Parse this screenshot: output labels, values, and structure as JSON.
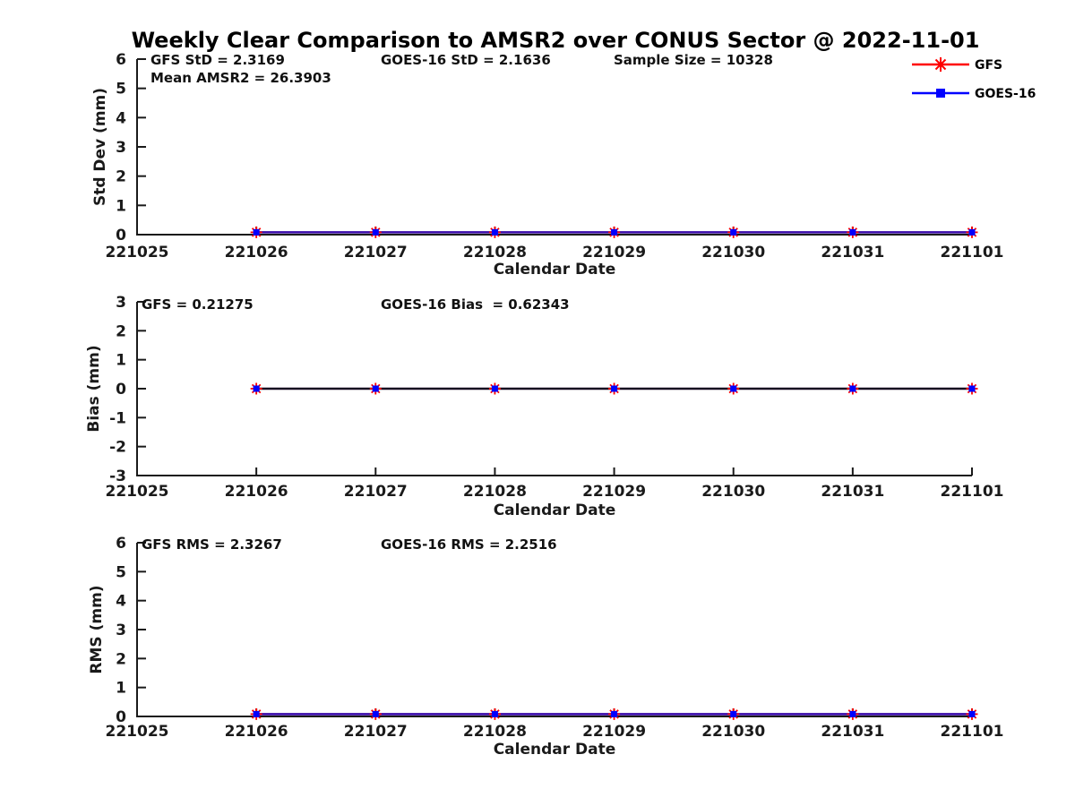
{
  "title": "Weekly Clear Comparison to AMSR2 over CONUS Sector @ 2022-11-01",
  "legend": {
    "items": [
      {
        "label": "GFS",
        "color": "#ff0000",
        "marker": "asterisk"
      },
      {
        "label": "GOES-16",
        "color": "#0000ff",
        "marker": "square"
      }
    ]
  },
  "colors": {
    "axis": "#1a1a1a",
    "gfs": "#ff0000",
    "goes16": "#0000ff",
    "blended_line_top_bottom": "#3808a8",
    "blended_line_middle": "#150520"
  },
  "chart_data": [
    {
      "type": "line",
      "ylabel": "Std Dev (mm)",
      "xlabel": "Calendar Date",
      "ylim": [
        0,
        6
      ],
      "yticks": [
        0,
        1,
        2,
        3,
        4,
        5,
        6
      ],
      "xticklabels": [
        "221025",
        "221026",
        "221027",
        "221028",
        "221029",
        "221030",
        "221031",
        "221101"
      ],
      "x": [
        "221026",
        "221027",
        "221028",
        "221029",
        "221030",
        "221031",
        "221101"
      ],
      "series": [
        {
          "name": "GFS",
          "color": "#ff0000",
          "marker": "asterisk",
          "values": [
            0.08,
            0.08,
            0.08,
            0.08,
            0.08,
            0.08,
            0.08
          ]
        },
        {
          "name": "GOES-16",
          "color": "#0000ff",
          "marker": "square",
          "values": [
            0.08,
            0.08,
            0.08,
            0.08,
            0.08,
            0.08,
            0.08
          ]
        }
      ],
      "line_blend_color": "#3808a8",
      "grid": false,
      "annotations": [
        {
          "text": "GFS StD = 2.3169"
        },
        {
          "text": "GOES-16 StD = 2.1636"
        },
        {
          "text": "Sample Size = 10328"
        },
        {
          "text": "Mean AMSR2 = 26.3903"
        }
      ]
    },
    {
      "type": "line",
      "ylabel": "Bias (mm)",
      "xlabel": "Calendar Date",
      "ylim": [
        -3,
        3
      ],
      "yticks": [
        3,
        2,
        1,
        0,
        -1,
        -2,
        -3
      ],
      "xticklabels": [
        "221025",
        "221026",
        "221027",
        "221028",
        "221029",
        "221030",
        "221031",
        "221101"
      ],
      "x": [
        "221026",
        "221027",
        "221028",
        "221029",
        "221030",
        "221031",
        "221101"
      ],
      "series": [
        {
          "name": "GFS",
          "color": "#ff0000",
          "marker": "asterisk",
          "values": [
            0,
            0,
            0,
            0,
            0,
            0,
            0
          ]
        },
        {
          "name": "GOES-16",
          "color": "#0000ff",
          "marker": "square",
          "values": [
            0,
            0,
            0,
            0,
            0,
            0,
            0
          ]
        }
      ],
      "line_blend_color": "#150520",
      "grid": false,
      "annotations": [
        {
          "text": "GFS = 0.21275"
        },
        {
          "text": "GOES-16 Bias  = 0.62343"
        }
      ]
    },
    {
      "type": "line",
      "ylabel": "RMS (mm)",
      "xlabel": "Calendar Date",
      "ylim": [
        0,
        6
      ],
      "yticks": [
        0,
        1,
        2,
        3,
        4,
        5,
        6
      ],
      "xticklabels": [
        "221025",
        "221026",
        "221027",
        "221028",
        "221029",
        "221030",
        "221031",
        "221101"
      ],
      "x": [
        "221026",
        "221027",
        "221028",
        "221029",
        "221030",
        "221031",
        "221101"
      ],
      "series": [
        {
          "name": "GFS",
          "color": "#ff0000",
          "marker": "asterisk",
          "values": [
            0.08,
            0.08,
            0.08,
            0.08,
            0.08,
            0.08,
            0.08
          ]
        },
        {
          "name": "GOES-16",
          "color": "#0000ff",
          "marker": "square",
          "values": [
            0.08,
            0.08,
            0.08,
            0.08,
            0.08,
            0.08,
            0.08
          ]
        }
      ],
      "line_blend_color": "#3808a8",
      "grid": false,
      "annotations": [
        {
          "text": "GFS RMS = 2.3267"
        },
        {
          "text": "GOES-16 RMS = 2.2516"
        }
      ]
    }
  ]
}
